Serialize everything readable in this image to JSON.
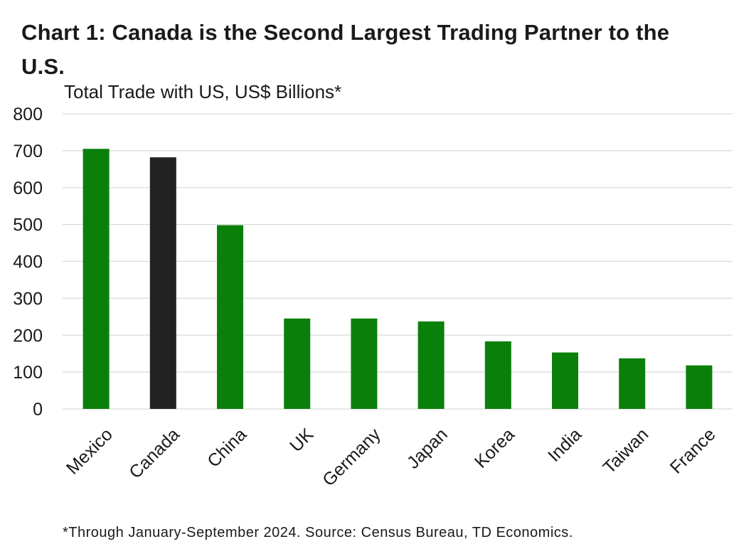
{
  "chart_data": {
    "type": "bar",
    "title": "Chart 1: Canada is the Second Largest Trading Partner to the U.S.",
    "subtitle": "Total Trade with US, US$ Billions*",
    "footnote": "*Through January-September 2024. Source: Census Bureau, TD Economics.",
    "xlabel": "",
    "ylabel": "Total Trade with US, US$ Billions*",
    "ylim": [
      0,
      800
    ],
    "yticks": [
      0,
      100,
      200,
      300,
      400,
      500,
      600,
      700,
      800
    ],
    "grid": true,
    "categories": [
      "Mexico",
      "Canada",
      "China",
      "UK",
      "Germany",
      "Japan",
      "Korea",
      "India",
      "Taiwan",
      "France"
    ],
    "values": [
      705,
      682,
      498,
      245,
      245,
      237,
      183,
      153,
      137,
      118
    ],
    "highlight": "Canada",
    "colors": {
      "default": "#0a800a",
      "highlight": "#222222",
      "grid": "#d9d9d9"
    }
  }
}
